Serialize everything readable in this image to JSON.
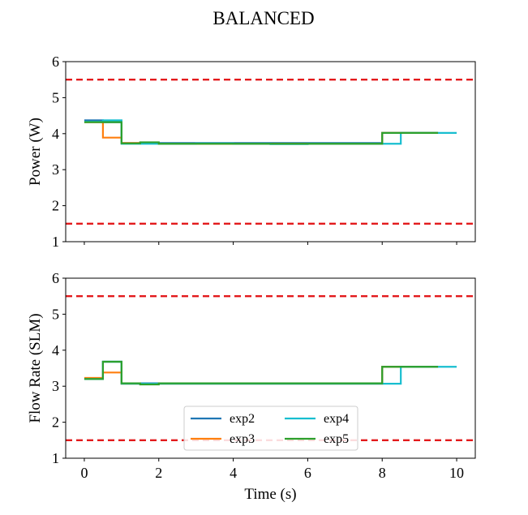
{
  "title": "BALANCED",
  "chart_data": [
    {
      "type": "line",
      "step": true,
      "ylabel": "Power (W)",
      "xlabel": "",
      "xlim": [
        -0.5,
        10.5
      ],
      "ylim": [
        1,
        6
      ],
      "xticks": [
        0,
        2,
        4,
        6,
        8,
        10
      ],
      "yticks": [
        1,
        2,
        3,
        4,
        5,
        6
      ],
      "show_xticklabels": false,
      "limits": [
        1.5,
        5.5
      ],
      "series": [
        {
          "name": "exp2",
          "color": "#1f77b4",
          "x": [
            0,
            0.5,
            1.0,
            8.0,
            9.5
          ],
          "y": [
            4.37,
            4.32,
            3.74,
            4.02,
            4.02
          ]
        },
        {
          "name": "exp3",
          "color": "#ff7f0e",
          "x": [
            0,
            0.5,
            1.0,
            1.5,
            2.0,
            8.0,
            9.5
          ],
          "y": [
            4.32,
            3.89,
            3.74,
            3.73,
            3.72,
            4.02,
            4.02
          ]
        },
        {
          "name": "exp4",
          "color": "#17becf",
          "x": [
            0,
            0.5,
            1.0,
            3.0,
            4.0,
            5.0,
            6.0,
            8.5,
            10.0
          ],
          "y": [
            4.33,
            4.37,
            3.72,
            3.73,
            3.72,
            3.71,
            3.72,
            4.02,
            4.02
          ]
        },
        {
          "name": "exp5",
          "color": "#2ca02c",
          "x": [
            0,
            1.0,
            1.5,
            2.0,
            8.0,
            9.5
          ],
          "y": [
            4.32,
            3.73,
            3.76,
            3.72,
            4.02,
            4.02
          ]
        }
      ]
    },
    {
      "type": "line",
      "step": true,
      "ylabel": "Flow Rate (SLM)",
      "xlabel": "Time (s)",
      "xlim": [
        -0.5,
        10.5
      ],
      "ylim": [
        1,
        6
      ],
      "xticks": [
        0,
        2,
        4,
        6,
        8,
        10
      ],
      "yticks": [
        1,
        2,
        3,
        4,
        5,
        6
      ],
      "show_xticklabels": true,
      "limits": [
        1.5,
        5.5
      ],
      "legend": {
        "position": "lower-center",
        "columns": 2,
        "entries": [
          "exp2",
          "exp3",
          "exp4",
          "exp5"
        ]
      },
      "series": [
        {
          "name": "exp2",
          "color": "#1f77b4",
          "x": [
            0,
            0.5,
            1.0,
            8.0,
            9.5
          ],
          "y": [
            3.2,
            3.68,
            3.08,
            3.54,
            3.54
          ]
        },
        {
          "name": "exp3",
          "color": "#ff7f0e",
          "x": [
            0,
            0.5,
            1.0,
            8.0,
            9.5
          ],
          "y": [
            3.23,
            3.38,
            3.07,
            3.54,
            3.54
          ]
        },
        {
          "name": "exp4",
          "color": "#17becf",
          "x": [
            0,
            0.5,
            1.0,
            8.5,
            10.0
          ],
          "y": [
            3.2,
            3.68,
            3.07,
            3.54,
            3.54
          ]
        },
        {
          "name": "exp5",
          "color": "#2ca02c",
          "x": [
            0,
            0.5,
            1.0,
            1.5,
            2.0,
            8.0,
            9.5
          ],
          "y": [
            3.2,
            3.68,
            3.08,
            3.05,
            3.08,
            3.54,
            3.54
          ]
        }
      ]
    }
  ]
}
